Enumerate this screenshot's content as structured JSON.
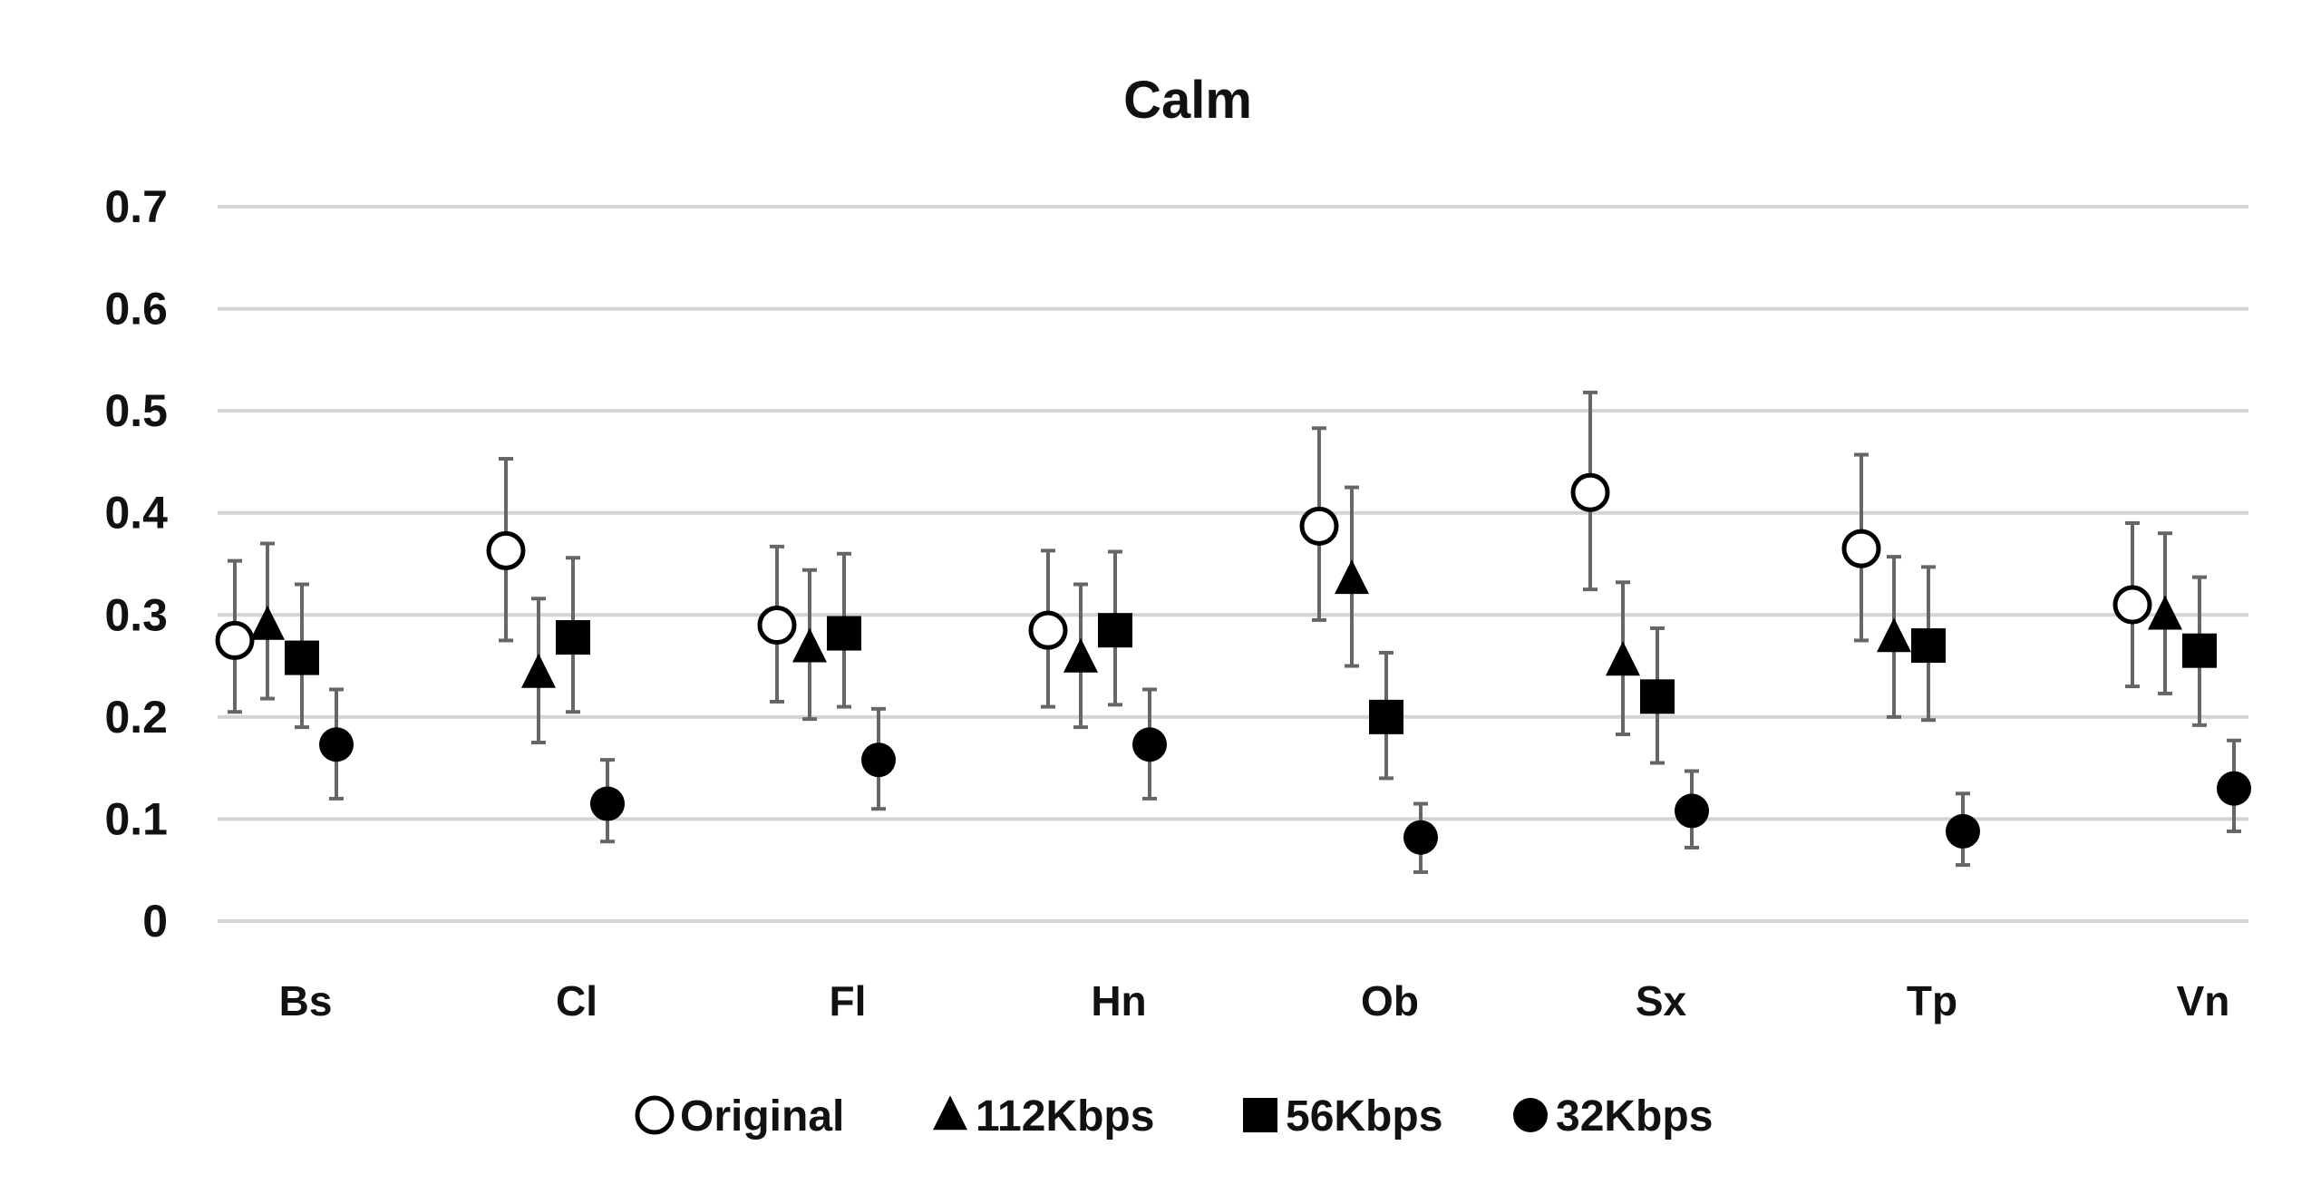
{
  "chart_data": {
    "type": "scatter",
    "title": "Calm",
    "xlabel": "",
    "ylabel": "",
    "ylim": [
      0,
      0.7
    ],
    "y_ticks": [
      "0",
      "0.1",
      "0.2",
      "0.3",
      "0.4",
      "0.5",
      "0.6",
      "0.7"
    ],
    "grid": true,
    "legend_position": "bottom",
    "categories": [
      "Bs",
      "Cl",
      "Fl",
      "Hn",
      "Ob",
      "Sx",
      "Tp",
      "Vn"
    ],
    "series": [
      {
        "name": "Original",
        "marker": "open-circle",
        "color": "#000000",
        "values": [
          0.275,
          0.363,
          0.29,
          0.285,
          0.387,
          0.42,
          0.365,
          0.31
        ],
        "error_low": [
          0.205,
          0.275,
          0.215,
          0.21,
          0.295,
          0.325,
          0.275,
          0.23
        ],
        "error_high": [
          0.353,
          0.453,
          0.367,
          0.363,
          0.483,
          0.518,
          0.457,
          0.39
        ]
      },
      {
        "name": "112Kbps",
        "marker": "filled-triangle",
        "color": "#000000",
        "values": [
          0.29,
          0.243,
          0.268,
          0.258,
          0.335,
          0.255,
          0.278,
          0.3
        ],
        "error_low": [
          0.218,
          0.175,
          0.198,
          0.19,
          0.25,
          0.183,
          0.2,
          0.223
        ],
        "error_high": [
          0.37,
          0.316,
          0.344,
          0.33,
          0.425,
          0.332,
          0.357,
          0.38
        ]
      },
      {
        "name": "56Kbps",
        "marker": "filled-square",
        "color": "#000000",
        "values": [
          0.258,
          0.278,
          0.282,
          0.285,
          0.2,
          0.22,
          0.27,
          0.265
        ],
        "error_low": [
          0.19,
          0.205,
          0.21,
          0.212,
          0.14,
          0.155,
          0.197,
          0.192
        ],
        "error_high": [
          0.33,
          0.356,
          0.36,
          0.362,
          0.263,
          0.287,
          0.347,
          0.337
        ]
      },
      {
        "name": "32Kbps",
        "marker": "filled-circle",
        "color": "#000000",
        "values": [
          0.173,
          0.115,
          0.158,
          0.173,
          0.082,
          0.108,
          0.088,
          0.13
        ],
        "error_low": [
          0.12,
          0.078,
          0.11,
          0.12,
          0.048,
          0.072,
          0.055,
          0.088
        ],
        "error_high": [
          0.227,
          0.158,
          0.208,
          0.227,
          0.115,
          0.147,
          0.125,
          0.177
        ]
      }
    ]
  }
}
